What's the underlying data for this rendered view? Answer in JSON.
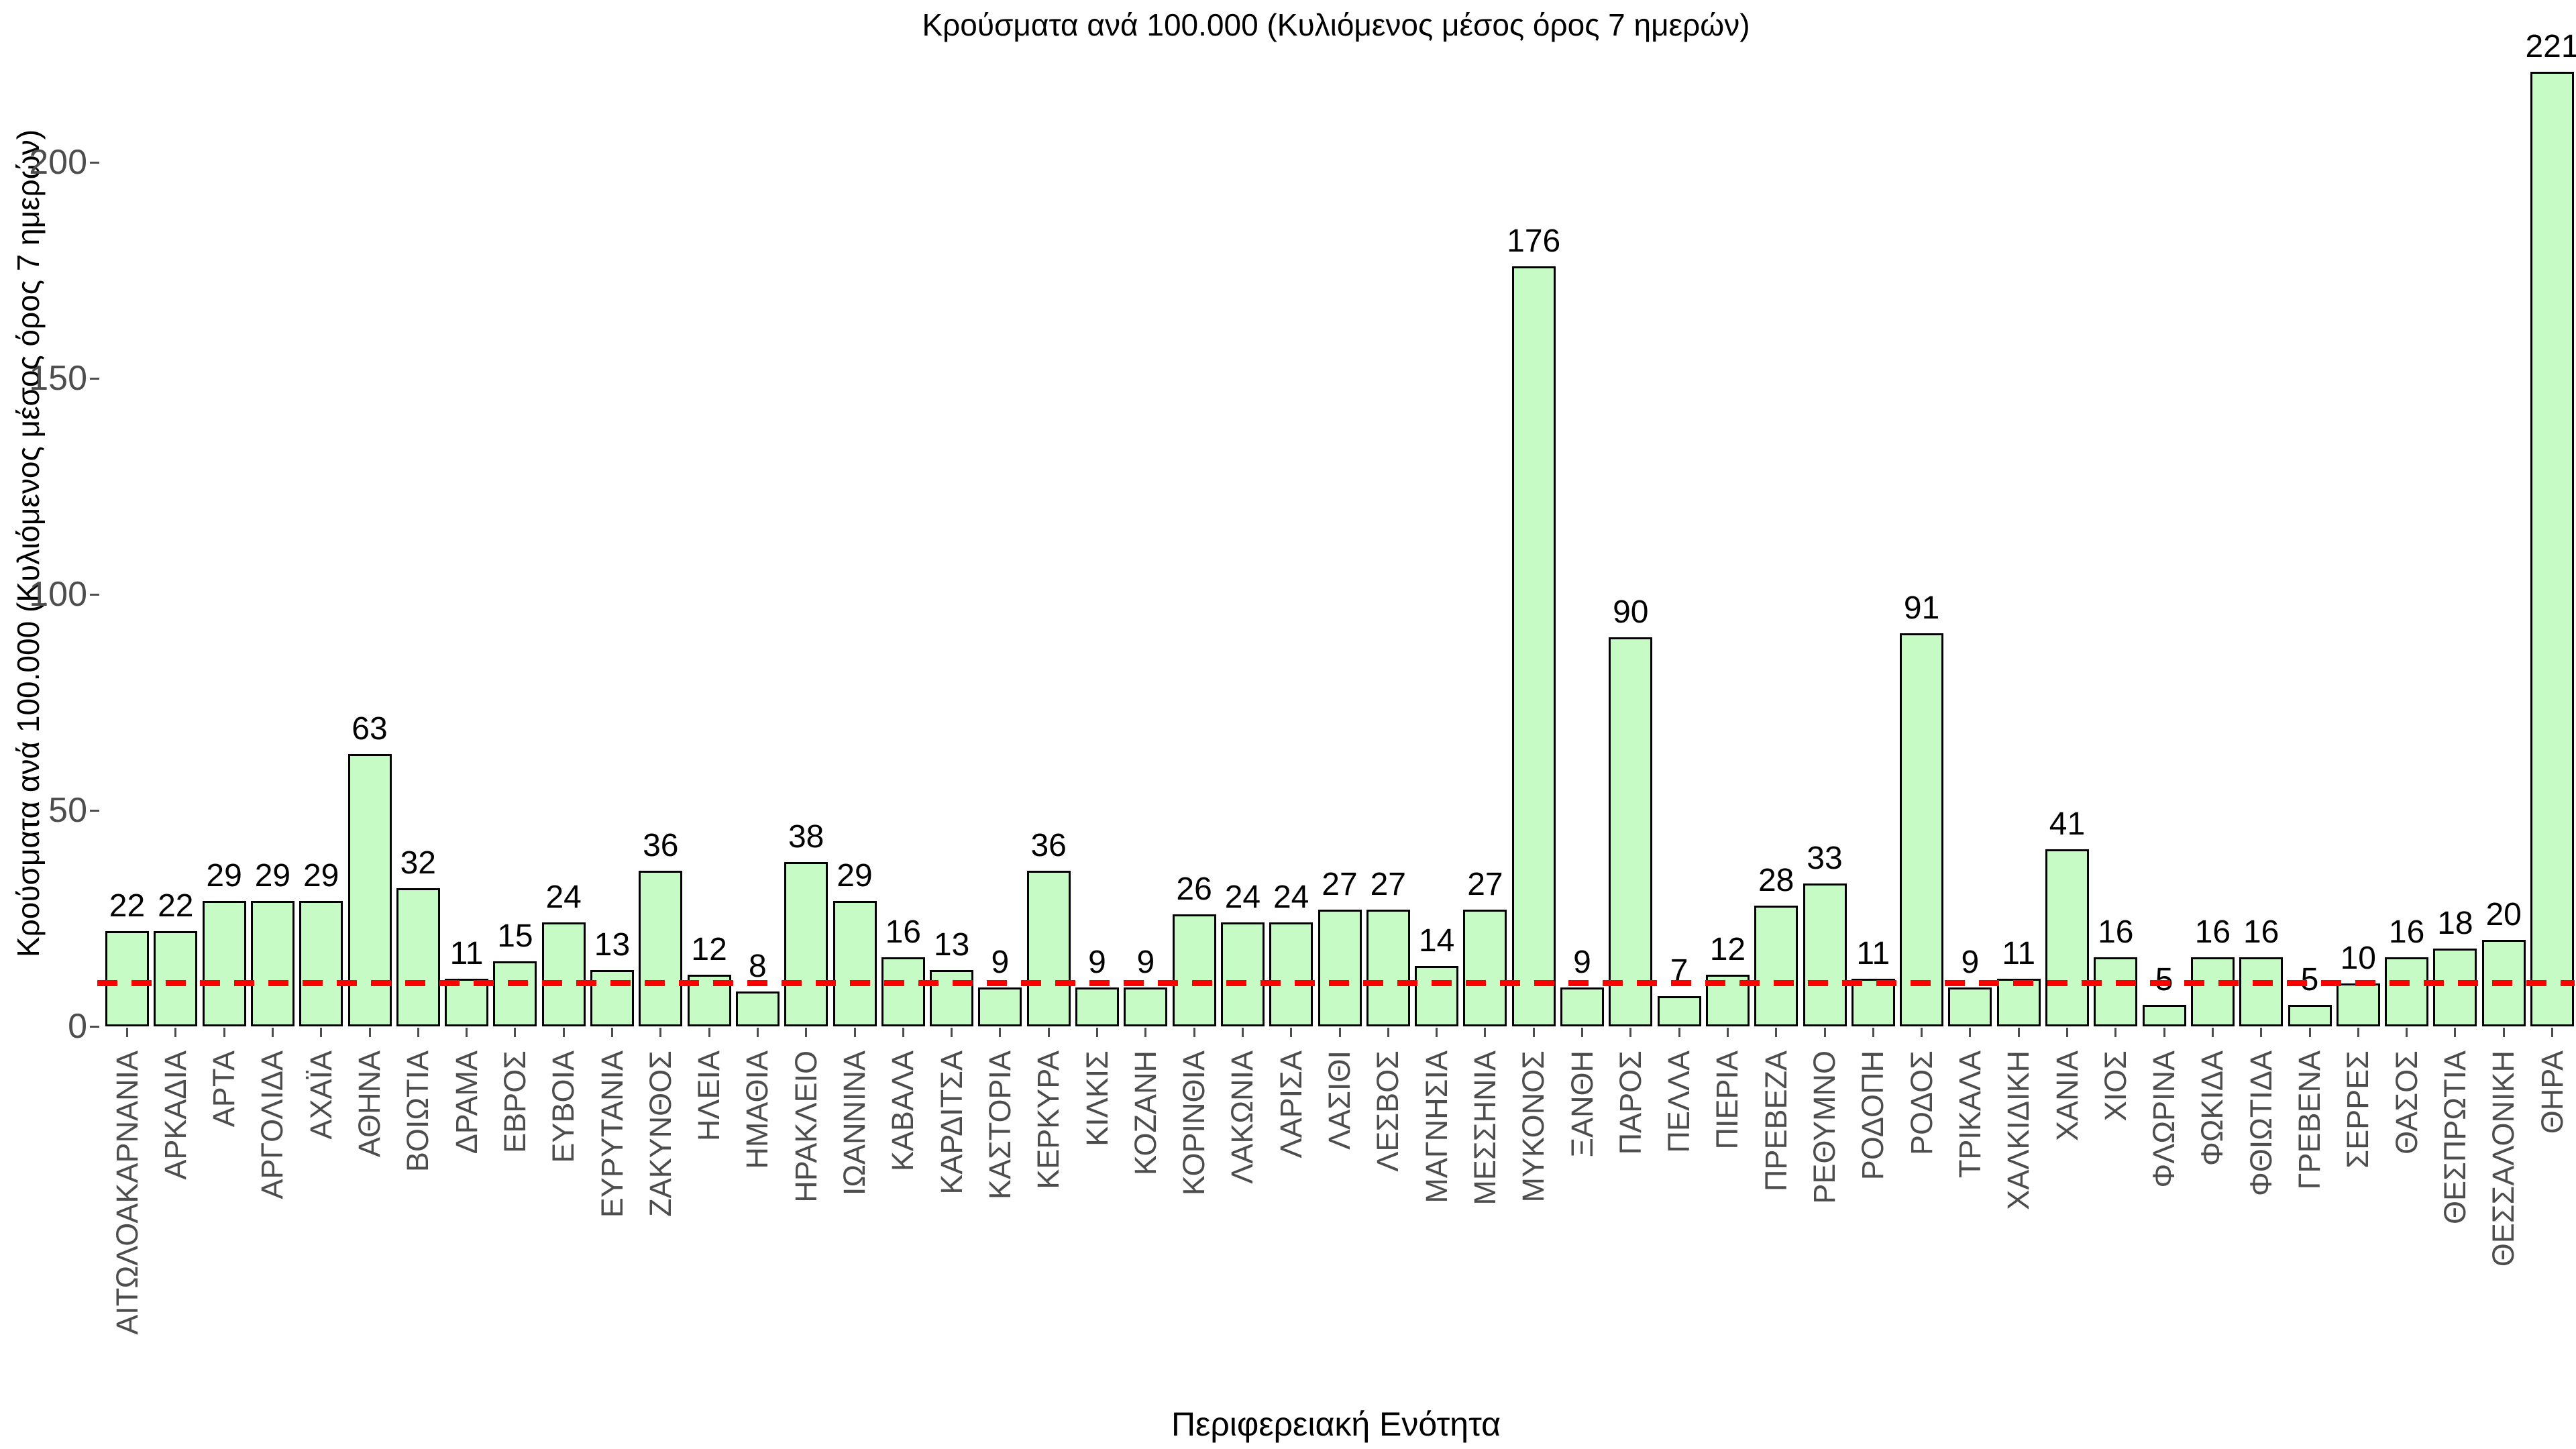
{
  "chart_data": {
    "type": "bar",
    "title": "Κρούσματα ανά 100.000 (Κυλιόμενος μέσος όρος 7 ημερών)",
    "xlabel": "Περιφερειακή Ενότητα",
    "ylabel": "Κρούσματα ανά 100.000 (Κυλιόμενος μέσος όρος 7 ημερών)",
    "categories": [
      "ΑΙΤΩΛΟΑΚΑΡΝΑΝΙΑ",
      "ΑΡΚΑΔΙΑ",
      "ΑΡΤΑ",
      "ΑΡΓΟΛΙΔΑ",
      "ΑΧΑΪΑ",
      "ΑΘΗΝΑ",
      "ΒΟΙΩΤΙΑ",
      "ΔΡΑΜΑ",
      "ΕΒΡΟΣ",
      "ΕΥΒΟΙΑ",
      "ΕΥΡΥΤΑΝΙΑ",
      "ΖΑΚΥΝΘΟΣ",
      "ΗΛΕΙΑ",
      "ΗΜΑΘΙΑ",
      "ΗΡΑΚΛΕΙΟ",
      "ΙΩΑΝΝΙΝΑ",
      "ΚΑΒΑΛΑ",
      "ΚΑΡΔΙΤΣΑ",
      "ΚΑΣΤΟΡΙΑ",
      "ΚΕΡΚΥΡΑ",
      "ΚΙΛΚΙΣ",
      "ΚΟΖΑΝΗ",
      "ΚΟΡΙΝΘΙΑ",
      "ΛΑΚΩΝΙΑ",
      "ΛΑΡΙΣΑ",
      "ΛΑΣΙΘΙ",
      "ΛΕΣΒΟΣ",
      "ΜΑΓΝΗΣΙΑ",
      "ΜΕΣΣΗΝΙΑ",
      "ΜΥΚΟΝΟΣ",
      "ΞΑΝΘΗ",
      "ΠΑΡΟΣ",
      "ΠΕΛΛΑ",
      "ΠΙΕΡΙΑ",
      "ΠΡΕΒΕΖΑ",
      "ΡΕΘΥΜΝΟ",
      "ΡΟΔΟΠΗ",
      "ΡΟΔΟΣ",
      "ΤΡΙΚΑΛΑ",
      "ΧΑΛΚΙΔΙΚΗ",
      "ΧΑΝΙΑ",
      "ΧΙΟΣ",
      "ΦΛΩΡΙΝΑ",
      "ΦΩΚΙΔΑ",
      "ΦΘΙΩΤΙΔΑ",
      "ΓΡΕΒΕΝΑ",
      "ΣΕΡΡΕΣ",
      "ΘΑΣΟΣ",
      "ΘΕΣΠΡΩΤΙΑ",
      "ΘΕΣΣΑΛΟΝΙΚΗ",
      "ΘΗΡΑ"
    ],
    "values": [
      22,
      22,
      29,
      29,
      29,
      63,
      32,
      11,
      15,
      24,
      13,
      36,
      12,
      8,
      38,
      29,
      16,
      13,
      9,
      36,
      9,
      9,
      26,
      24,
      24,
      27,
      27,
      14,
      27,
      176,
      9,
      90,
      7,
      12,
      28,
      33,
      11,
      91,
      9,
      11,
      41,
      16,
      5,
      16,
      16,
      5,
      10,
      16,
      18,
      20,
      221
    ],
    "yticks": [
      0,
      50,
      100,
      150,
      200
    ],
    "ylim": [
      0,
      230
    ],
    "grid": false,
    "legend": null,
    "bar_fill_color": "#c6fbc6",
    "bar_border_color": "#000000",
    "reference_line": {
      "value": 10,
      "color": "#ff0000",
      "style": "dashed"
    }
  }
}
